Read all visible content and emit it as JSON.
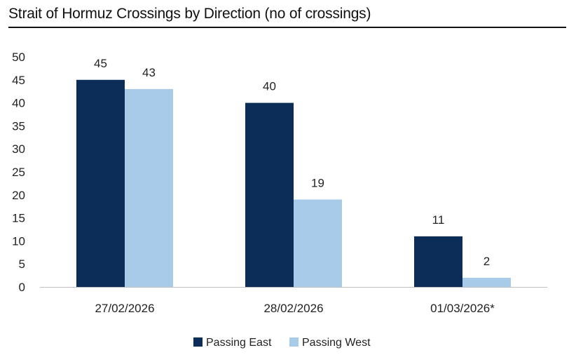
{
  "chart_data": {
    "type": "bar",
    "title": "Strait of Hormuz Crossings by Direction (no of crossings)",
    "categories": [
      "27/02/2026",
      "28/02/2026",
      "01/03/2026*"
    ],
    "series": [
      {
        "name": "Passing East",
        "values": [
          45,
          40,
          11
        ],
        "color": "#0b2d57"
      },
      {
        "name": "Passing West",
        "values": [
          43,
          19,
          2
        ],
        "color": "#a9cbea"
      }
    ],
    "ylim": [
      0,
      50
    ],
    "yticks": [
      0,
      5,
      10,
      15,
      20,
      25,
      30,
      35,
      40,
      45,
      50
    ],
    "grid": false,
    "legend_position": "bottom-center"
  }
}
